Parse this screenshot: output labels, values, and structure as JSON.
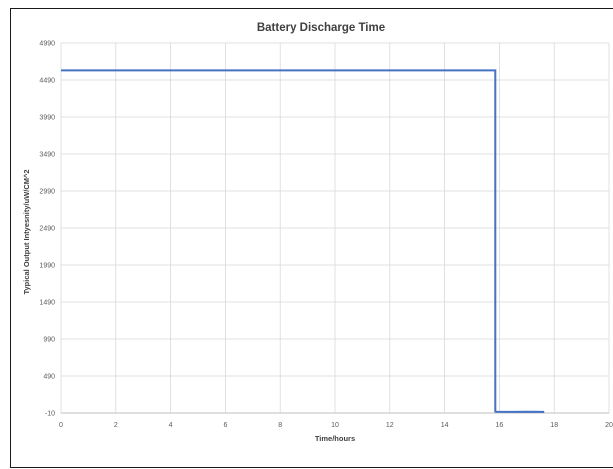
{
  "chart_data": {
    "type": "line",
    "title": "Battery Discharge Time",
    "xlabel": "Time/hours",
    "ylabel": "Typical Output Intyesnity/uW/CM^2",
    "xlim": [
      0,
      20
    ],
    "ylim": [
      -10,
      4990
    ],
    "x_ticks": [
      "0",
      "2",
      "4",
      "6",
      "8",
      "10",
      "12",
      "14",
      "16",
      "18",
      "20"
    ],
    "y_ticks": [
      "-10",
      "490",
      "990",
      "1490",
      "1990",
      "2490",
      "2990",
      "3490",
      "3990",
      "4490",
      "4990"
    ],
    "grid": true,
    "legend": "none",
    "series": [
      {
        "color": "#4472c4",
        "x": [
          0,
          2,
          4,
          6,
          8,
          10,
          12,
          14,
          15.85,
          15.85,
          15.9,
          16.5,
          17,
          17.6,
          17.6
        ],
        "y": [
          4620,
          4620,
          4620,
          4620,
          4620,
          4620,
          4620,
          4620,
          4620,
          10,
          8,
          5,
          8,
          5,
          -10
        ]
      }
    ]
  }
}
